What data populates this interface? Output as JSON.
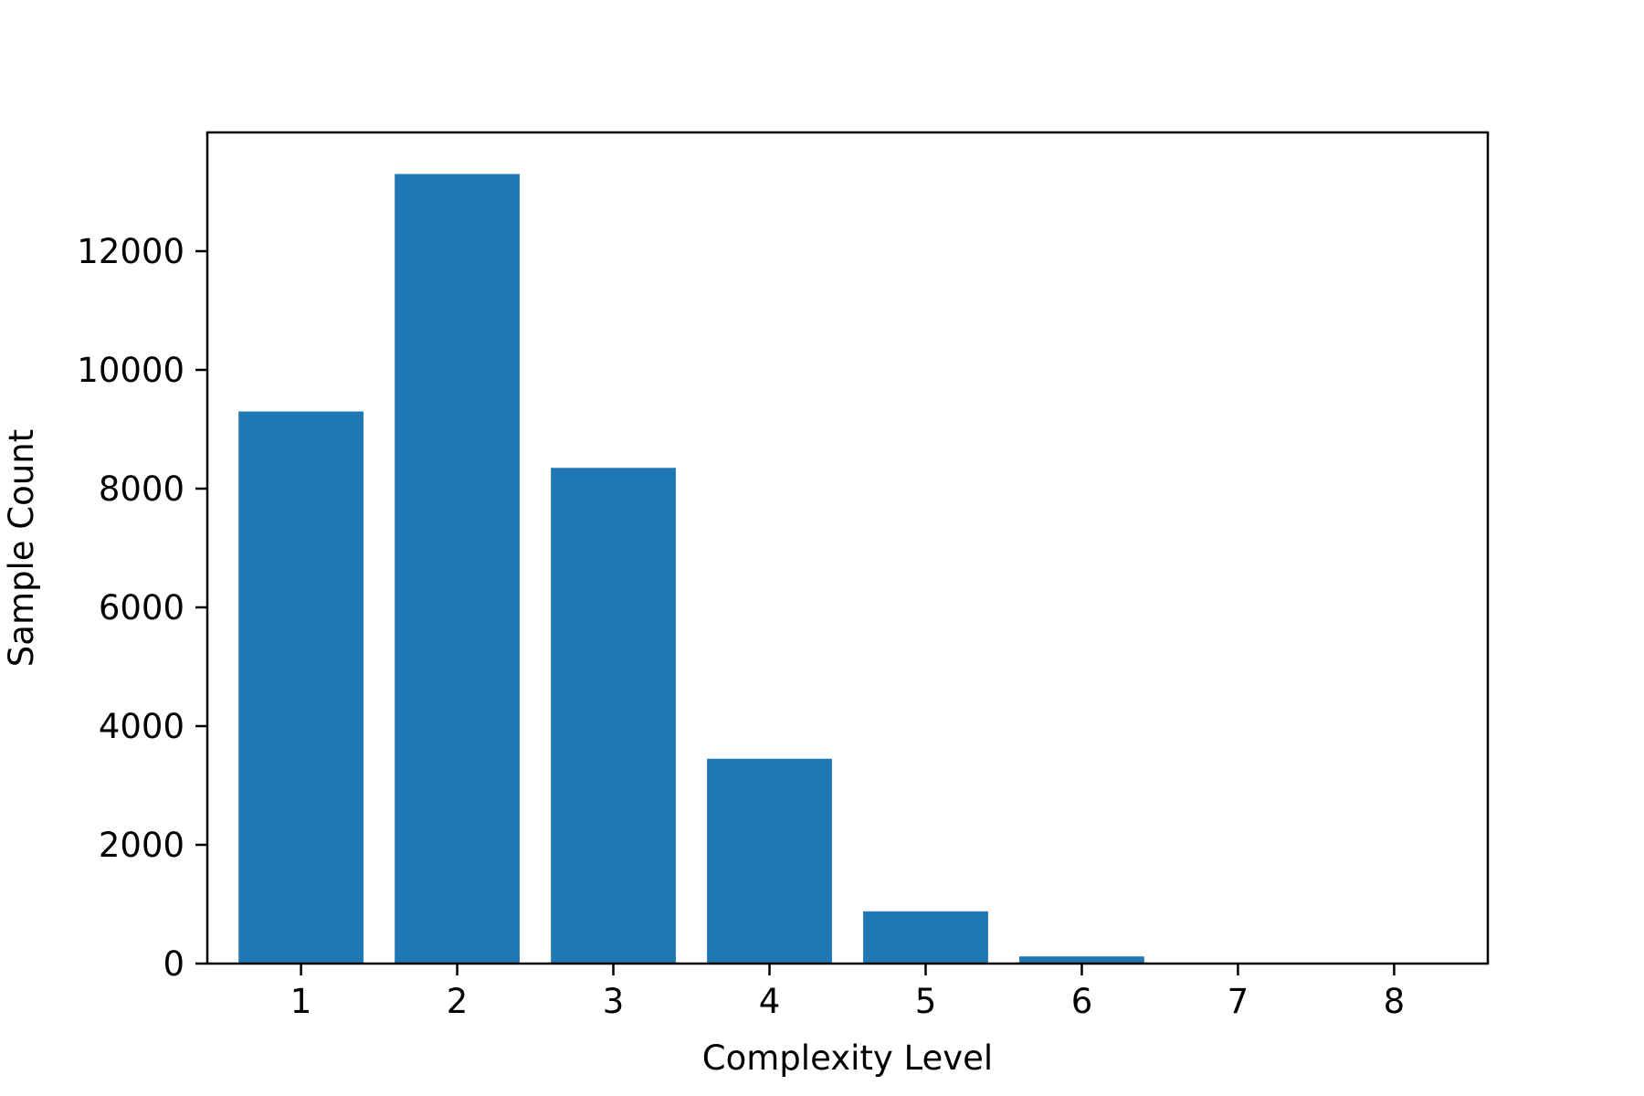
{
  "chart_data": {
    "type": "bar",
    "categories": [
      "1",
      "2",
      "3",
      "4",
      "5",
      "6",
      "7",
      "8"
    ],
    "values": [
      9300,
      13300,
      8350,
      3450,
      880,
      120,
      0,
      0
    ],
    "title": "",
    "xlabel": "Complexity Level",
    "ylabel": "Sample Count",
    "ylim": [
      0,
      14000
    ],
    "yticks": [
      0,
      2000,
      4000,
      6000,
      8000,
      10000,
      12000
    ],
    "grid": false,
    "legend": "none",
    "bar_color": "#1f77b4"
  }
}
